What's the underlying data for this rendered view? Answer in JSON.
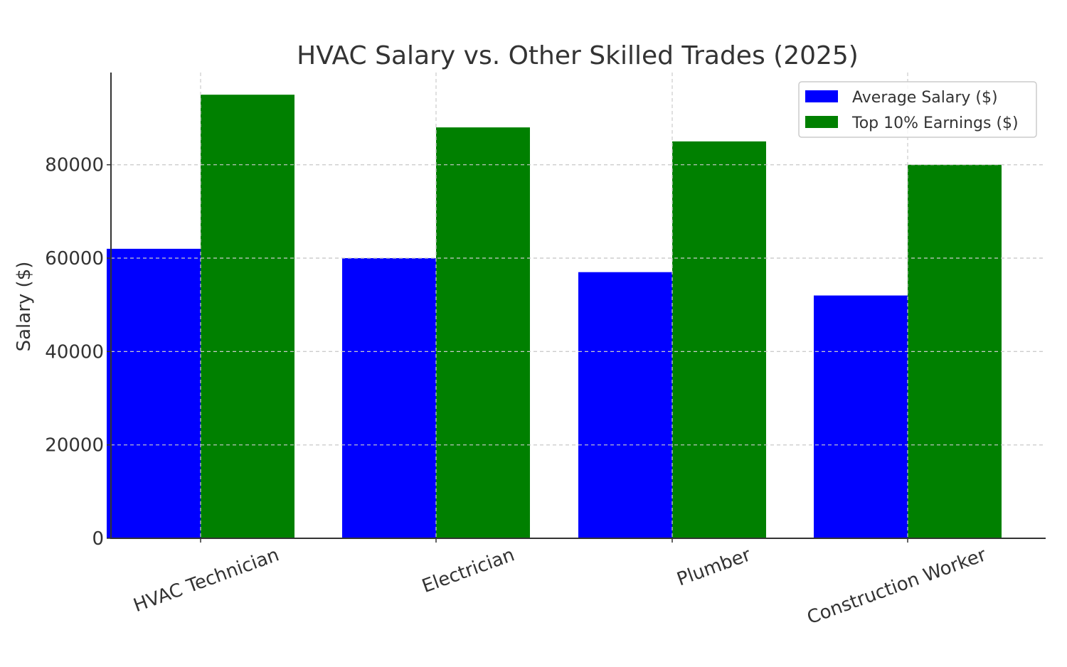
{
  "chart_data": {
    "type": "bar",
    "title": "HVAC Salary vs. Other Skilled Trades (2025)",
    "xlabel": "",
    "ylabel": "Salary ($)",
    "categories": [
      "HVAC Technician",
      "Electrician",
      "Plumber",
      "Construction Worker"
    ],
    "series": [
      {
        "name": "Average Salary ($)",
        "values": [
          62000,
          60000,
          57000,
          52000
        ],
        "color": "#0000ff"
      },
      {
        "name": "Top 10% Earnings ($)",
        "values": [
          95000,
          88000,
          85000,
          80000
        ],
        "color": "#008000"
      }
    ],
    "y_ticks": [
      0,
      20000,
      40000,
      60000,
      80000
    ],
    "ylim": [
      0,
      99750
    ],
    "grid": true,
    "legend_position": "top-right"
  }
}
